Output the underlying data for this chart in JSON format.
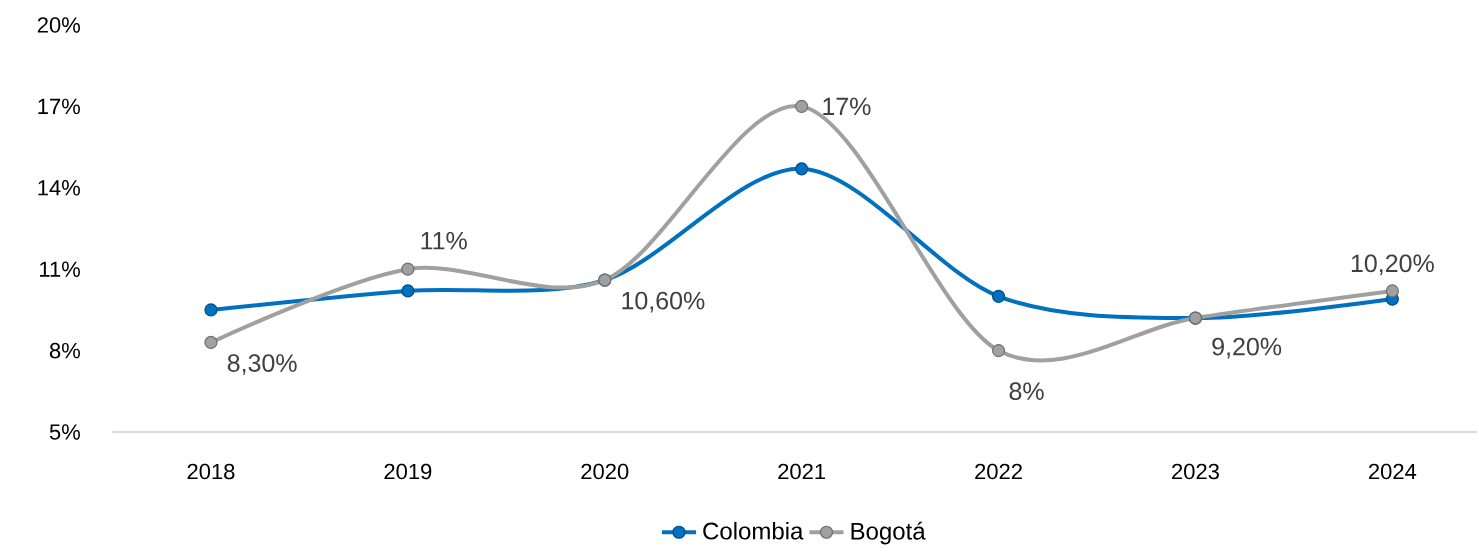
{
  "chart_data": {
    "type": "line",
    "categories": [
      "2018",
      "2019",
      "2020",
      "2021",
      "2022",
      "2023",
      "2024"
    ],
    "series": [
      {
        "name": "Colombia",
        "color": "#0070c0",
        "values": [
          9.5,
          10.2,
          10.6,
          14.7,
          10.0,
          9.2,
          9.9
        ]
      },
      {
        "name": "Bogotá",
        "color": "#a0a0a0",
        "values": [
          8.3,
          11,
          10.6,
          17,
          8,
          9.2,
          10.2
        ],
        "value_labels": [
          "8,30%",
          "11%",
          "10,60%",
          "17%",
          "8%",
          "9,20%",
          "10,20%"
        ]
      }
    ],
    "ylim": [
      5,
      20
    ],
    "yticks": [
      {
        "value": 5,
        "label": "5%"
      },
      {
        "value": 8,
        "label": "8%"
      },
      {
        "value": 11,
        "label": "11%"
      },
      {
        "value": 14,
        "label": "14%"
      },
      {
        "value": 17,
        "label": "17%"
      },
      {
        "value": 20,
        "label": "20%"
      }
    ],
    "grid": false,
    "legend": "bottom",
    "marker": "circle",
    "line_style": "solid"
  }
}
